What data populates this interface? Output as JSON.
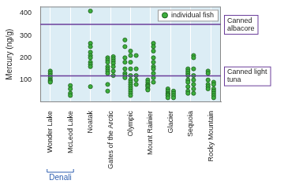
{
  "chart_data": {
    "type": "scatter",
    "y_label": "Mercury (ng/g)",
    "categories": [
      "Wonder Lake",
      "McLeod Lake",
      "Noatak",
      "Gates of the Arctic",
      "Olympic",
      "Mount Rainier",
      "Glacier",
      "Sequoia",
      "Rocky Mountain"
    ],
    "series": [
      {
        "name": "individual fish",
        "color": "#3dae3d",
        "marker": "circle",
        "values": [
          [
            [
              140,
              130,
              120,
              110,
              100,
              95,
              90
            ]
          ],
          [
            [
              75,
              60,
              40,
              30
            ]
          ],
          [
            [
              410,
              265,
              250,
              225,
              210,
              200,
              180,
              170,
              160,
              70
            ]
          ],
          [
            [
              200,
              190,
              180,
              160,
              150,
              140,
              130,
              80,
              50
            ],
            [
              205,
              195,
              185,
              175,
              160,
              140,
              120
            ]
          ],
          [
            [
              280,
              250,
              200,
              180,
              150,
              130,
              120,
              110
            ],
            [
              230,
              210,
              180,
              150,
              120,
              100,
              90,
              80,
              70,
              60,
              50,
              40,
              30
            ],
            [
              210,
              150,
              120,
              100,
              80
            ]
          ],
          [
            [
              100,
              90,
              80,
              75,
              70,
              60,
              55
            ],
            [
              265,
              250,
              230,
              200,
              180,
              160,
              150,
              130,
              110,
              90
            ]
          ],
          [
            [
              60,
              50,
              40,
              35,
              30,
              20
            ],
            [
              50,
              40,
              30,
              20
            ]
          ],
          [
            [
              150,
              140,
              130,
              120,
              100,
              90,
              70,
              50,
              40
            ],
            [
              210,
              200,
              150,
              120,
              100,
              80,
              60,
              40
            ]
          ],
          [
            [
              140,
              130,
              100,
              80,
              70,
              60
            ],
            [
              90,
              80,
              60,
              50,
              40,
              30,
              20
            ]
          ]
        ]
      }
    ],
    "groups": [
      {
        "label": "Denali",
        "categories": [
          "Wonder Lake",
          "McLeod Lake"
        ]
      }
    ],
    "reference_lines": [
      {
        "label": "Canned albacore",
        "value": 350,
        "color": "#6a3d9a"
      },
      {
        "label": "Canned light tuna",
        "value": 118,
        "color": "#6a3d9a"
      }
    ],
    "ylim": [
      0,
      430
    ],
    "yticks": [
      100,
      200,
      300,
      400
    ],
    "grid": true,
    "legend": "top-right"
  }
}
